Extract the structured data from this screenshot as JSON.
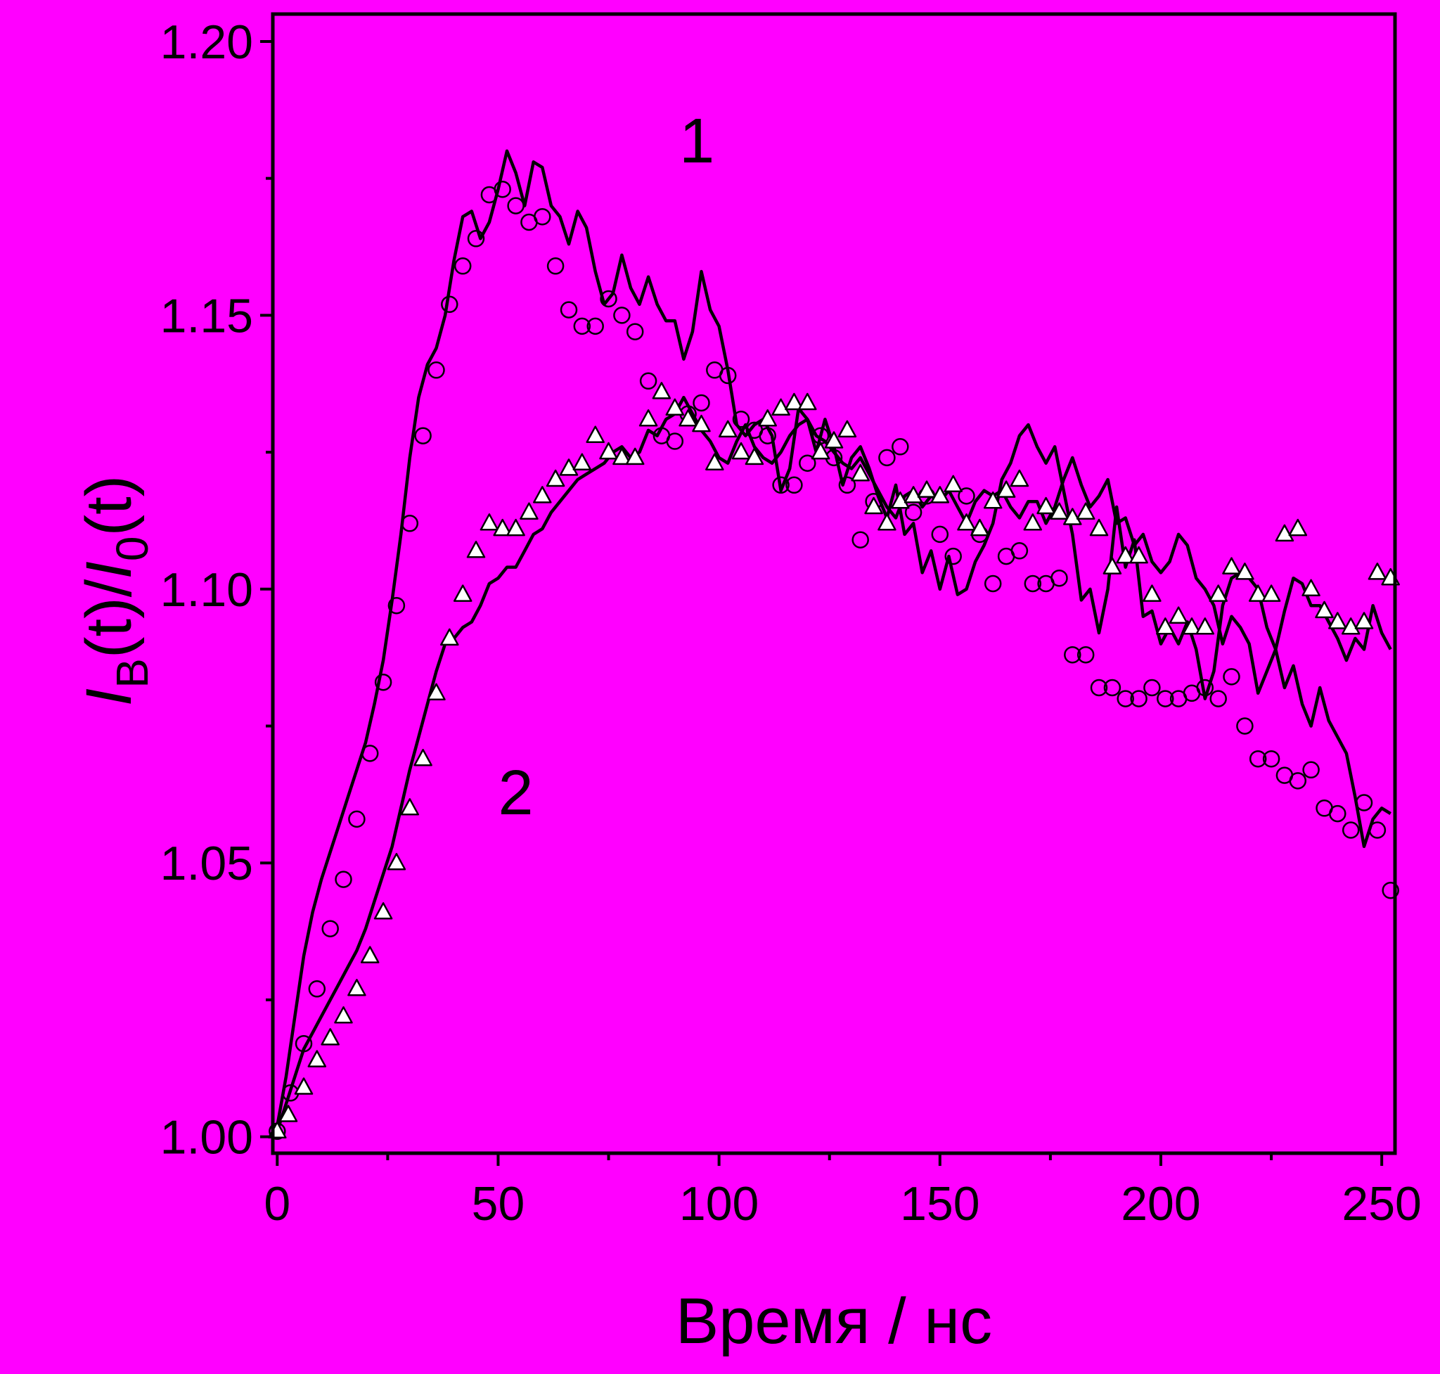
{
  "chart_data": {
    "type": "scatter",
    "title": "",
    "xlabel": "Время / нс",
    "ylabel": {
      "i1": "I",
      "sub1": "B",
      "mid": "(t)/",
      "i2": "I",
      "sub2": "0",
      "end": "(t)"
    },
    "xlim": [
      -1,
      253
    ],
    "ylim": [
      0.997,
      1.205
    ],
    "xticks": [
      0,
      50,
      100,
      150,
      200,
      250
    ],
    "xtick_labels": [
      "0",
      "50",
      "100",
      "150",
      "200",
      "250"
    ],
    "yticks": [
      1.0,
      1.05,
      1.1,
      1.15,
      1.2
    ],
    "ytick_labels": [
      "1.00",
      "1.05",
      "1.10",
      "1.15",
      "1.20"
    ],
    "annotations": [
      {
        "text": "1",
        "x": 95,
        "y": 1.182
      },
      {
        "text": "2",
        "x": 54,
        "y": 1.063
      }
    ],
    "grid": false,
    "legend": "none",
    "colors": {
      "background": "#ff00ff",
      "ink": "#000000",
      "marker_fill": "#ffffff"
    },
    "series": [
      {
        "marker": "circle",
        "x": [
          0,
          3,
          6,
          9,
          12,
          15,
          18,
          21,
          24,
          27,
          30,
          33,
          36,
          39,
          42,
          45,
          48,
          51,
          54,
          57,
          60,
          63,
          66,
          69,
          72,
          75,
          78,
          81,
          84,
          87,
          90,
          93,
          96,
          99,
          102,
          105,
          108,
          111,
          114,
          117,
          120,
          123,
          126,
          129,
          132,
          135,
          138,
          141,
          144,
          147,
          150,
          153,
          156,
          159,
          162,
          165,
          168,
          171,
          174,
          177,
          180,
          183,
          186,
          189,
          192,
          195,
          198,
          201,
          204,
          207,
          210,
          213,
          216,
          219,
          222,
          225,
          228,
          231,
          234,
          237,
          240,
          243,
          246,
          249,
          252
        ],
        "y": [
          1.001,
          1.008,
          1.017,
          1.027,
          1.038,
          1.047,
          1.058,
          1.07,
          1.083,
          1.097,
          1.112,
          1.128,
          1.14,
          1.152,
          1.159,
          1.164,
          1.172,
          1.173,
          1.17,
          1.167,
          1.168,
          1.159,
          1.151,
          1.148,
          1.148,
          1.153,
          1.15,
          1.147,
          1.138,
          1.128,
          1.127,
          1.132,
          1.134,
          1.14,
          1.139,
          1.131,
          1.129,
          1.128,
          1.119,
          1.119,
          1.123,
          1.128,
          1.124,
          1.119,
          1.109,
          1.116,
          1.124,
          1.126,
          1.114,
          1.117,
          1.11,
          1.106,
          1.117,
          1.11,
          1.101,
          1.106,
          1.107,
          1.101,
          1.101,
          1.102,
          1.088,
          1.088,
          1.082,
          1.082,
          1.08,
          1.08,
          1.082,
          1.08,
          1.08,
          1.081,
          1.082,
          1.08,
          1.084,
          1.075,
          1.069,
          1.069,
          1.066,
          1.065,
          1.067,
          1.06,
          1.059,
          1.056,
          1.061,
          1.056,
          1.045
        ]
      },
      {
        "marker": "triangle",
        "x": [
          0,
          2.5,
          6,
          9,
          12,
          15,
          18,
          21,
          24,
          27,
          30,
          33,
          36,
          39,
          42,
          45,
          48,
          51,
          54,
          57,
          60,
          63,
          66,
          69,
          72,
          75,
          78,
          81,
          84,
          87,
          90,
          93,
          96,
          99,
          102,
          105,
          108,
          111,
          114,
          117,
          120,
          123,
          126,
          129,
          132,
          135,
          138,
          141,
          144,
          147,
          150,
          153,
          156,
          159,
          162,
          165,
          168,
          171,
          174,
          177,
          180,
          183,
          186,
          189,
          192,
          195,
          198,
          201,
          204,
          207,
          210,
          213,
          216,
          219,
          222,
          225,
          228,
          231,
          234,
          237,
          240,
          243,
          246,
          249,
          252
        ],
        "y": [
          1.001,
          1.004,
          1.009,
          1.014,
          1.018,
          1.022,
          1.027,
          1.033,
          1.041,
          1.05,
          1.06,
          1.069,
          1.081,
          1.091,
          1.099,
          1.107,
          1.112,
          1.111,
          1.111,
          1.114,
          1.117,
          1.12,
          1.122,
          1.123,
          1.128,
          1.125,
          1.124,
          1.124,
          1.131,
          1.136,
          1.133,
          1.131,
          1.13,
          1.123,
          1.129,
          1.125,
          1.124,
          1.131,
          1.133,
          1.134,
          1.134,
          1.125,
          1.127,
          1.129,
          1.121,
          1.115,
          1.112,
          1.116,
          1.117,
          1.118,
          1.117,
          1.119,
          1.112,
          1.111,
          1.116,
          1.118,
          1.12,
          1.112,
          1.115,
          1.114,
          1.113,
          1.114,
          1.111,
          1.104,
          1.106,
          1.106,
          1.099,
          1.093,
          1.095,
          1.093,
          1.093,
          1.099,
          1.104,
          1.103,
          1.099,
          1.099,
          1.11,
          1.111,
          1.1,
          1.096,
          1.094,
          1.093,
          1.094,
          1.103,
          1.102
        ]
      },
      {
        "marker": "line",
        "x": [
          0,
          2,
          4,
          6,
          8,
          10,
          12,
          14,
          16,
          18,
          20,
          22,
          24,
          26,
          28,
          30,
          32,
          34,
          36,
          38,
          40,
          42,
          44,
          46,
          48,
          50,
          52,
          54,
          56,
          58,
          60,
          62,
          64,
          66,
          68,
          70,
          72,
          74,
          76,
          78,
          80,
          82,
          84,
          86,
          88,
          90,
          92,
          94,
          96,
          98,
          100,
          102,
          104,
          106,
          108,
          110,
          112,
          114,
          116,
          118,
          120,
          122,
          124,
          126,
          128,
          130,
          132,
          134,
          136,
          138,
          140,
          142,
          144,
          146,
          148,
          150,
          152,
          154,
          156,
          158,
          160,
          162,
          164,
          166,
          168,
          170,
          172,
          174,
          176,
          178,
          180,
          182,
          184,
          186,
          188,
          190,
          192,
          194,
          196,
          198,
          200,
          202,
          204,
          206,
          208,
          210,
          212,
          214,
          216,
          218,
          220,
          222,
          224,
          226,
          228,
          230,
          232,
          234,
          236,
          238,
          240,
          242,
          244,
          246,
          248,
          250,
          252
        ],
        "y": [
          1.002,
          1.011,
          1.022,
          1.033,
          1.041,
          1.047,
          1.052,
          1.057,
          1.062,
          1.067,
          1.072,
          1.079,
          1.087,
          1.098,
          1.11,
          1.124,
          1.135,
          1.141,
          1.144,
          1.15,
          1.16,
          1.168,
          1.169,
          1.164,
          1.167,
          1.173,
          1.18,
          1.176,
          1.17,
          1.178,
          1.177,
          1.17,
          1.168,
          1.163,
          1.169,
          1.166,
          1.158,
          1.152,
          1.154,
          1.161,
          1.155,
          1.152,
          1.157,
          1.152,
          1.149,
          1.149,
          1.142,
          1.147,
          1.158,
          1.151,
          1.148,
          1.14,
          1.13,
          1.128,
          1.13,
          1.131,
          1.128,
          1.118,
          1.122,
          1.133,
          1.131,
          1.125,
          1.131,
          1.126,
          1.119,
          1.124,
          1.126,
          1.122,
          1.117,
          1.113,
          1.119,
          1.11,
          1.112,
          1.103,
          1.107,
          1.1,
          1.106,
          1.099,
          1.1,
          1.105,
          1.108,
          1.112,
          1.12,
          1.123,
          1.128,
          1.13,
          1.126,
          1.123,
          1.126,
          1.118,
          1.11,
          1.098,
          1.1,
          1.092,
          1.1,
          1.115,
          1.104,
          1.109,
          1.095,
          1.096,
          1.09,
          1.093,
          1.09,
          1.094,
          1.089,
          1.08,
          1.085,
          1.097,
          1.102,
          1.103,
          1.102,
          1.1,
          1.093,
          1.089,
          1.096,
          1.102,
          1.101,
          1.097,
          1.097,
          1.094,
          1.091,
          1.087,
          1.091,
          1.089,
          1.097,
          1.092,
          1.089
        ]
      },
      {
        "marker": "line",
        "x": [
          0,
          2,
          4,
          6,
          8,
          10,
          12,
          14,
          16,
          18,
          20,
          22,
          24,
          26,
          28,
          30,
          32,
          34,
          36,
          38,
          40,
          42,
          44,
          46,
          48,
          50,
          52,
          54,
          56,
          58,
          60,
          62,
          64,
          66,
          68,
          70,
          72,
          74,
          76,
          78,
          80,
          82,
          84,
          86,
          88,
          90,
          92,
          94,
          96,
          98,
          100,
          102,
          104,
          106,
          108,
          110,
          112,
          114,
          116,
          118,
          120,
          122,
          124,
          126,
          128,
          130,
          132,
          134,
          136,
          138,
          140,
          142,
          144,
          146,
          148,
          150,
          152,
          154,
          156,
          158,
          160,
          162,
          164,
          166,
          168,
          170,
          172,
          174,
          176,
          178,
          180,
          182,
          184,
          186,
          188,
          190,
          192,
          194,
          196,
          198,
          200,
          202,
          204,
          206,
          208,
          210,
          212,
          214,
          216,
          218,
          220,
          222,
          224,
          226,
          228,
          230,
          232,
          234,
          236,
          238,
          240,
          242,
          244,
          246,
          248,
          250,
          252
        ],
        "y": [
          1.001,
          1.006,
          1.011,
          1.016,
          1.019,
          1.022,
          1.025,
          1.028,
          1.031,
          1.034,
          1.038,
          1.043,
          1.048,
          1.053,
          1.06,
          1.067,
          1.073,
          1.079,
          1.085,
          1.09,
          1.091,
          1.093,
          1.094,
          1.097,
          1.101,
          1.102,
          1.104,
          1.104,
          1.107,
          1.11,
          1.111,
          1.114,
          1.116,
          1.118,
          1.12,
          1.121,
          1.122,
          1.123,
          1.125,
          1.126,
          1.124,
          1.125,
          1.129,
          1.128,
          1.131,
          1.132,
          1.135,
          1.132,
          1.129,
          1.127,
          1.124,
          1.123,
          1.127,
          1.13,
          1.126,
          1.124,
          1.123,
          1.125,
          1.128,
          1.13,
          1.131,
          1.128,
          1.127,
          1.125,
          1.123,
          1.122,
          1.124,
          1.121,
          1.118,
          1.115,
          1.113,
          1.117,
          1.118,
          1.115,
          1.117,
          1.116,
          1.118,
          1.115,
          1.112,
          1.116,
          1.118,
          1.117,
          1.118,
          1.115,
          1.113,
          1.116,
          1.116,
          1.112,
          1.115,
          1.12,
          1.124,
          1.119,
          1.115,
          1.117,
          1.12,
          1.112,
          1.113,
          1.108,
          1.11,
          1.105,
          1.103,
          1.105,
          1.11,
          1.108,
          1.102,
          1.1,
          1.097,
          1.09,
          1.095,
          1.093,
          1.09,
          1.081,
          1.085,
          1.089,
          1.082,
          1.086,
          1.079,
          1.075,
          1.082,
          1.076,
          1.073,
          1.07,
          1.062,
          1.053,
          1.058,
          1.06,
          1.059
        ]
      }
    ]
  }
}
